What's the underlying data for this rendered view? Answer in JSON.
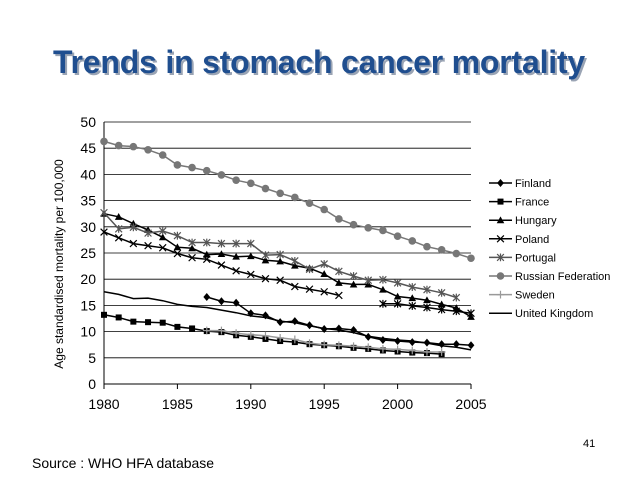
{
  "slide": {
    "title": "Trends in stomach cancer mortality",
    "source": "Source : WHO HFA database",
    "page_number": "41"
  },
  "chart_data": {
    "type": "line",
    "title": "",
    "xlabel": "",
    "ylabel": "Age standardised mortality per 100,000",
    "xlim": [
      1980,
      2005
    ],
    "ylim": [
      0,
      50
    ],
    "xticks": [
      1980,
      1985,
      1990,
      1995,
      2000,
      2005
    ],
    "yticks": [
      0,
      5,
      10,
      15,
      20,
      25,
      30,
      35,
      40,
      45,
      50
    ],
    "grid": "horizontal",
    "legend_position": "right",
    "series": [
      {
        "name": "Finland",
        "color": "#000000",
        "marker": "diamond",
        "points": [
          [
            1987,
            16.6
          ],
          [
            1988,
            15.8
          ],
          [
            1989,
            15.5
          ],
          [
            1990,
            13.5
          ],
          [
            1991,
            13.1
          ],
          [
            1992,
            11.8
          ],
          [
            1993,
            12.0
          ],
          [
            1994,
            11.2
          ],
          [
            1995,
            10.5
          ],
          [
            1996,
            10.6
          ],
          [
            1997,
            10.3
          ],
          [
            1998,
            9.0
          ],
          [
            1999,
            8.4
          ],
          [
            2000,
            8.2
          ],
          [
            2001,
            8.0
          ],
          [
            2002,
            7.9
          ],
          [
            2003,
            7.6
          ],
          [
            2004,
            7.6
          ],
          [
            2005,
            7.4
          ]
        ]
      },
      {
        "name": "France",
        "color": "#000000",
        "marker": "square",
        "points": [
          [
            1980,
            13.2
          ],
          [
            1981,
            12.7
          ],
          [
            1982,
            11.9
          ],
          [
            1983,
            11.8
          ],
          [
            1984,
            11.7
          ],
          [
            1985,
            10.9
          ],
          [
            1986,
            10.6
          ],
          [
            1987,
            10.1
          ],
          [
            1988,
            9.9
          ],
          [
            1989,
            9.3
          ],
          [
            1990,
            9.0
          ],
          [
            1991,
            8.6
          ],
          [
            1992,
            8.2
          ],
          [
            1993,
            8.0
          ],
          [
            1994,
            7.6
          ],
          [
            1995,
            7.4
          ],
          [
            1996,
            7.2
          ],
          [
            1997,
            6.9
          ],
          [
            1998,
            6.7
          ],
          [
            1999,
            6.4
          ],
          [
            2000,
            6.2
          ],
          [
            2001,
            6.0
          ],
          [
            2002,
            5.9
          ],
          [
            2003,
            5.7
          ]
        ]
      },
      {
        "name": "Hungary",
        "color": "#000000",
        "marker": "triangle",
        "points": [
          [
            1980,
            32.5
          ],
          [
            1981,
            31.9
          ],
          [
            1982,
            30.6
          ],
          [
            1983,
            29.4
          ],
          [
            1984,
            28.0
          ],
          [
            1985,
            26.1
          ],
          [
            1986,
            25.9
          ],
          [
            1987,
            24.7
          ],
          [
            1988,
            24.8
          ],
          [
            1989,
            24.3
          ],
          [
            1990,
            24.4
          ],
          [
            1991,
            23.6
          ],
          [
            1992,
            23.4
          ],
          [
            1993,
            22.6
          ],
          [
            1994,
            22.1
          ],
          [
            1995,
            21.0
          ],
          [
            1996,
            19.3
          ],
          [
            1997,
            19.0
          ],
          [
            1998,
            19.0
          ],
          [
            1999,
            18.0
          ],
          [
            2000,
            16.7
          ],
          [
            2001,
            16.4
          ],
          [
            2002,
            16.0
          ],
          [
            2003,
            15.2
          ],
          [
            2004,
            14.5
          ],
          [
            2005,
            12.8
          ]
        ]
      },
      {
        "name": "Poland",
        "color": "#000000",
        "marker": "x",
        "points": [
          [
            1980,
            29.0
          ],
          [
            1981,
            27.9
          ],
          [
            1982,
            26.8
          ],
          [
            1983,
            26.4
          ],
          [
            1984,
            26.0
          ],
          [
            1985,
            24.9
          ],
          [
            1986,
            24.1
          ],
          [
            1987,
            23.8
          ],
          [
            1988,
            22.7
          ],
          [
            1989,
            21.6
          ],
          [
            1990,
            20.9
          ],
          [
            1991,
            20.1
          ],
          [
            1992,
            19.8
          ],
          [
            1993,
            18.6
          ],
          [
            1994,
            18.1
          ],
          [
            1995,
            17.6
          ],
          [
            1996,
            16.9
          ]
        ]
      },
      {
        "name": "Portugal",
        "color": "#555555",
        "marker": "star",
        "points": [
          [
            1980,
            32.7
          ],
          [
            1981,
            29.6
          ],
          [
            1982,
            29.9
          ],
          [
            1983,
            28.8
          ],
          [
            1984,
            29.2
          ],
          [
            1985,
            28.3
          ],
          [
            1986,
            27.0
          ],
          [
            1987,
            27.0
          ],
          [
            1988,
            26.8
          ],
          [
            1989,
            26.8
          ],
          [
            1990,
            26.8
          ],
          [
            1991,
            24.6
          ],
          [
            1992,
            24.7
          ],
          [
            1993,
            23.5
          ],
          [
            1994,
            21.9
          ],
          [
            1995,
            22.9
          ],
          [
            1996,
            21.5
          ],
          [
            1997,
            20.6
          ],
          [
            1998,
            19.8
          ],
          [
            1999,
            19.9
          ],
          [
            2000,
            19.3
          ],
          [
            2001,
            18.5
          ],
          [
            2002,
            18.0
          ],
          [
            2003,
            17.4
          ],
          [
            2004,
            16.5
          ]
        ]
      },
      {
        "name": "Russian Federation",
        "color": "#777777",
        "marker": "circle",
        "points": [
          [
            1980,
            46.3
          ],
          [
            1981,
            45.5
          ],
          [
            1982,
            45.3
          ],
          [
            1983,
            44.7
          ],
          [
            1984,
            43.7
          ],
          [
            1985,
            41.8
          ],
          [
            1986,
            41.3
          ],
          [
            1987,
            40.7
          ],
          [
            1988,
            39.9
          ],
          [
            1989,
            38.9
          ],
          [
            1990,
            38.3
          ],
          [
            1991,
            37.3
          ],
          [
            1992,
            36.4
          ],
          [
            1993,
            35.6
          ],
          [
            1994,
            34.5
          ],
          [
            1995,
            33.3
          ],
          [
            1996,
            31.5
          ],
          [
            1997,
            30.4
          ],
          [
            1998,
            29.8
          ],
          [
            1999,
            29.3
          ],
          [
            2000,
            28.2
          ],
          [
            2001,
            27.3
          ],
          [
            2002,
            26.2
          ],
          [
            2003,
            25.6
          ],
          [
            2004,
            24.9
          ],
          [
            2005,
            24.0
          ]
        ]
      },
      {
        "name": "Sweden",
        "color": "#999999",
        "marker": "plus",
        "points": [
          [
            1987,
            10.2
          ],
          [
            1988,
            10.2
          ],
          [
            1989,
            9.7
          ],
          [
            1990,
            9.4
          ],
          [
            1991,
            9.2
          ],
          [
            1992,
            8.8
          ],
          [
            1993,
            8.5
          ],
          [
            1994,
            7.8
          ],
          [
            1995,
            7.5
          ],
          [
            1996,
            7.4
          ],
          [
            1997,
            7.2
          ],
          [
            1998,
            7.0
          ],
          [
            1999,
            6.7
          ],
          [
            2000,
            6.6
          ],
          [
            2001,
            6.4
          ],
          [
            2002,
            6.1
          ],
          [
            2003,
            6.1
          ]
        ]
      },
      {
        "name": "United Kingdom",
        "color": "#000000",
        "marker": "dash",
        "points": [
          [
            1980,
            17.6
          ],
          [
            1981,
            17.1
          ],
          [
            1982,
            16.3
          ],
          [
            1983,
            16.4
          ],
          [
            1984,
            15.9
          ],
          [
            1985,
            15.2
          ],
          [
            1986,
            14.8
          ],
          [
            1987,
            14.6
          ],
          [
            1988,
            14.1
          ],
          [
            1989,
            13.6
          ],
          [
            1990,
            13.0
          ],
          [
            1991,
            12.7
          ],
          [
            1992,
            12.0
          ],
          [
            1993,
            11.7
          ],
          [
            1994,
            11.1
          ],
          [
            1995,
            10.6
          ],
          [
            1996,
            10.3
          ],
          [
            1997,
            9.8
          ],
          [
            1998,
            9.1
          ],
          [
            1999,
            8.7
          ],
          [
            2000,
            8.4
          ],
          [
            2001,
            8.2
          ],
          [
            2002,
            7.8
          ],
          [
            2003,
            7.3
          ],
          [
            2004,
            7.0
          ],
          [
            2005,
            6.5
          ]
        ]
      },
      {
        "name": "",
        "color": "#000000",
        "marker": "star",
        "points": [
          [
            1999,
            15.3
          ],
          [
            2000,
            15.3
          ],
          [
            2001,
            14.9
          ],
          [
            2002,
            14.6
          ],
          [
            2003,
            14.2
          ],
          [
            2004,
            13.9
          ],
          [
            2005,
            13.5
          ]
        ]
      }
    ]
  }
}
